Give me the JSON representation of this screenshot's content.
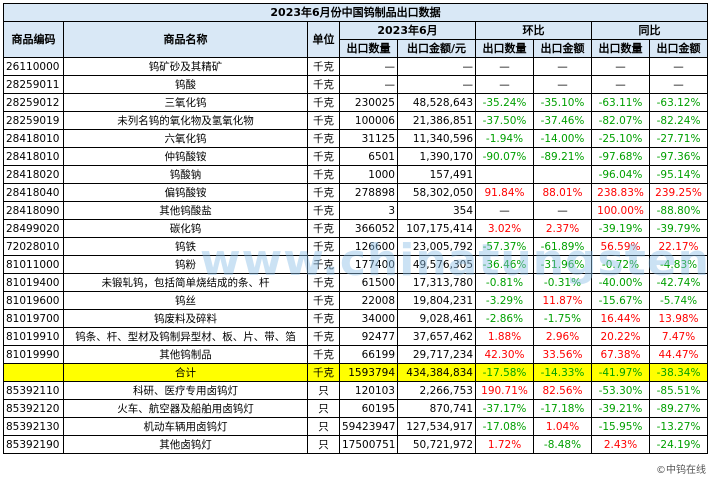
{
  "title": "2023年6月份中国钨制品出口数据",
  "headers": {
    "code": "商品编码",
    "name": "商品名称",
    "unit": "单位",
    "period": "2023年6月",
    "mom": "环比",
    "yoy": "同比",
    "qty": "出口数量",
    "amount": "出口金额/元",
    "mom_qty": "出口数量",
    "mom_amount": "出口金额",
    "yoy_qty": "出口数量",
    "yoy_amount": "出口金额"
  },
  "rows": [
    {
      "code": "26110000",
      "name": "钨矿砂及其精矿",
      "unit": "千克",
      "qty": "—",
      "amount": "—",
      "mom_qty": "—",
      "mom_amount": "—",
      "yoy_qty": "—",
      "yoy_amount": "—"
    },
    {
      "code": "28259011",
      "name": "钨酸",
      "unit": "千克",
      "qty": "—",
      "amount": "—",
      "mom_qty": "—",
      "mom_amount": "—",
      "yoy_qty": "—",
      "yoy_amount": "—"
    },
    {
      "code": "28259012",
      "name": "三氧化钨",
      "unit": "千克",
      "qty": "230025",
      "amount": "48,528,643",
      "mom_qty": "-35.24%",
      "mom_amount": "-35.10%",
      "yoy_qty": "-63.11%",
      "yoy_amount": "-63.12%"
    },
    {
      "code": "28259019",
      "name": "未列名钨的氧化物及氢氧化物",
      "unit": "千克",
      "qty": "100006",
      "amount": "21,386,851",
      "mom_qty": "-37.50%",
      "mom_amount": "-37.46%",
      "yoy_qty": "-82.07%",
      "yoy_amount": "-82.24%"
    },
    {
      "code": "28418010",
      "name": "六氧化钨",
      "unit": "千克",
      "qty": "31125",
      "amount": "11,340,596",
      "mom_qty": "-1.94%",
      "mom_amount": "-14.00%",
      "yoy_qty": "-25.10%",
      "yoy_amount": "-27.71%"
    },
    {
      "code": "28418010",
      "name": "仲钨酸铵",
      "unit": "千克",
      "qty": "6501",
      "amount": "1,390,170",
      "mom_qty": "-90.07%",
      "mom_amount": "-89.21%",
      "yoy_qty": "-97.68%",
      "yoy_amount": "-97.36%"
    },
    {
      "code": "28418020",
      "name": "钨酸钠",
      "unit": "千克",
      "qty": "1000",
      "amount": "157,491",
      "mom_qty": "",
      "mom_amount": "",
      "yoy_qty": "-96.04%",
      "yoy_amount": "-95.14%"
    },
    {
      "code": "28418040",
      "name": "偏钨酸铵",
      "unit": "千克",
      "qty": "278898",
      "amount": "58,302,050",
      "mom_qty": "91.84%",
      "mom_amount": "88.01%",
      "yoy_qty": "238.83%",
      "yoy_amount": "239.25%"
    },
    {
      "code": "28418090",
      "name": "其他钨酸盐",
      "unit": "千克",
      "qty": "3",
      "amount": "354",
      "mom_qty": "—",
      "mom_amount": "—",
      "yoy_qty": "100.00%",
      "yoy_amount": "-88.80%"
    },
    {
      "code": "28499020",
      "name": "碳化钨",
      "unit": "千克",
      "qty": "366052",
      "amount": "107,175,414",
      "mom_qty": "3.02%",
      "mom_amount": "2.37%",
      "yoy_qty": "-39.19%",
      "yoy_amount": "-39.79%"
    },
    {
      "code": "72028010",
      "name": "钨铁",
      "unit": "千克",
      "qty": "126600",
      "amount": "23,005,792",
      "mom_qty": "-57.37%",
      "mom_amount": "-61.89%",
      "yoy_qty": "56.59%",
      "yoy_amount": "22.17%"
    },
    {
      "code": "81011000",
      "name": "钨粉",
      "unit": "千克",
      "qty": "177400",
      "amount": "49,576,305",
      "mom_qty": "-36.46%",
      "mom_amount": "-31.96%",
      "yoy_qty": "-0.72%",
      "yoy_amount": "-4.83%"
    },
    {
      "code": "81019400",
      "name": "未锻轧钨，包括简单烧结成的条、杆",
      "unit": "千克",
      "qty": "61500",
      "amount": "17,313,780",
      "mom_qty": "-0.81%",
      "mom_amount": "-0.31%",
      "yoy_qty": "-40.00%",
      "yoy_amount": "-42.74%"
    },
    {
      "code": "81019600",
      "name": "钨丝",
      "unit": "千克",
      "qty": "22008",
      "amount": "19,804,231",
      "mom_qty": "-3.29%",
      "mom_amount": "11.87%",
      "yoy_qty": "-15.67%",
      "yoy_amount": "-5.74%"
    },
    {
      "code": "81019700",
      "name": "钨废料及碎料",
      "unit": "千克",
      "qty": "34000",
      "amount": "9,028,461",
      "mom_qty": "-2.86%",
      "mom_amount": "-1.75%",
      "yoy_qty": "16.44%",
      "yoy_amount": "13.98%"
    },
    {
      "code": "81019910",
      "name": "钨条、杆、型材及钨制异型材、板、片、带、箔",
      "unit": "千克",
      "qty": "92477",
      "amount": "37,657,462",
      "mom_qty": "1.88%",
      "mom_amount": "2.96%",
      "yoy_qty": "20.22%",
      "yoy_amount": "7.47%"
    },
    {
      "code": "81019990",
      "name": "其他钨制品",
      "unit": "千克",
      "qty": "66199",
      "amount": "29,717,234",
      "mom_qty": "42.30%",
      "mom_amount": "33.56%",
      "yoy_qty": "67.38%",
      "yoy_amount": "44.47%"
    }
  ],
  "total": {
    "name": "合计",
    "unit": "千克",
    "qty": "1593794",
    "amount": "434,384,834",
    "mom_qty": "-17.58%",
    "mom_amount": "-14.33%",
    "yoy_qty": "-41.97%",
    "yoy_amount": "-38.34%"
  },
  "lamp_rows": [
    {
      "code": "85392110",
      "name": "科研、医疗专用卤钨灯",
      "unit": "只",
      "qty": "120103",
      "amount": "2,266,753",
      "mom_qty": "190.71%",
      "mom_amount": "82.56%",
      "yoy_qty": "-53.30%",
      "yoy_amount": "-85.51%"
    },
    {
      "code": "85392120",
      "name": "火车、航空器及船舶用卤钨灯",
      "unit": "只",
      "qty": "60195",
      "amount": "870,741",
      "mom_qty": "-37.17%",
      "mom_amount": "-17.18%",
      "yoy_qty": "-39.21%",
      "yoy_amount": "-89.27%"
    },
    {
      "code": "85392130",
      "name": "机动车辆用卤钨灯",
      "unit": "只",
      "qty": "59423947",
      "amount": "127,534,917",
      "mom_qty": "-17.08%",
      "mom_amount": "1.04%",
      "yoy_qty": "-15.95%",
      "yoy_amount": "-13.27%"
    },
    {
      "code": "85392190",
      "name": "其他卤钨灯",
      "unit": "只",
      "qty": "17500751",
      "amount": "50,721,972",
      "mom_qty": "1.72%",
      "mom_amount": "-8.48%",
      "yoy_qty": "2.43%",
      "yoy_amount": "-24.19%"
    }
  ],
  "watermark": "www.chinatungsten.com",
  "credit": "©中钨在线",
  "colors": {
    "header_bg": "#d9e8f6",
    "total_bg": "#ffff00",
    "negative": "#00a000",
    "positive": "#ff0000"
  }
}
